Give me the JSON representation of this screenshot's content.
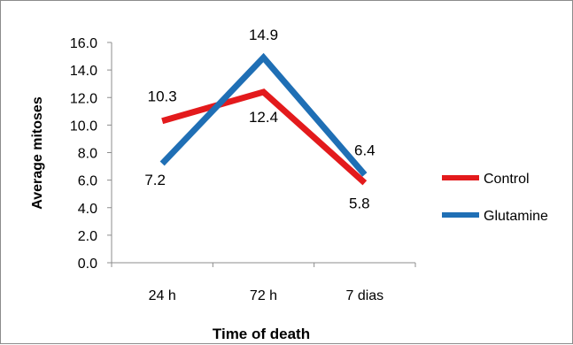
{
  "chart_data": {
    "type": "line",
    "categories": [
      "24 h",
      "72 h",
      "7 dias"
    ],
    "series": [
      {
        "name": "Control",
        "values": [
          10.3,
          12.4,
          5.8
        ],
        "color": "#e31a1c"
      },
      {
        "name": "Glutamine",
        "values": [
          7.2,
          14.9,
          6.4
        ],
        "color": "#1f6fb5"
      }
    ],
    "xlabel": "Time of death",
    "ylabel": "Average mitoses",
    "ylim": [
      0,
      16
    ],
    "yticks": [
      "0.0",
      "2.0",
      "4.0",
      "6.0",
      "8.0",
      "10.0",
      "12.0",
      "14.0",
      "16.0"
    ],
    "data_labels": [
      {
        "series": "Control",
        "text": [
          "10.3",
          "12.4",
          "5.8"
        ]
      },
      {
        "series": "Glutamine",
        "text": [
          "7.2",
          "14.9",
          "6.4"
        ]
      }
    ],
    "legend_position": "right",
    "grid": false
  }
}
